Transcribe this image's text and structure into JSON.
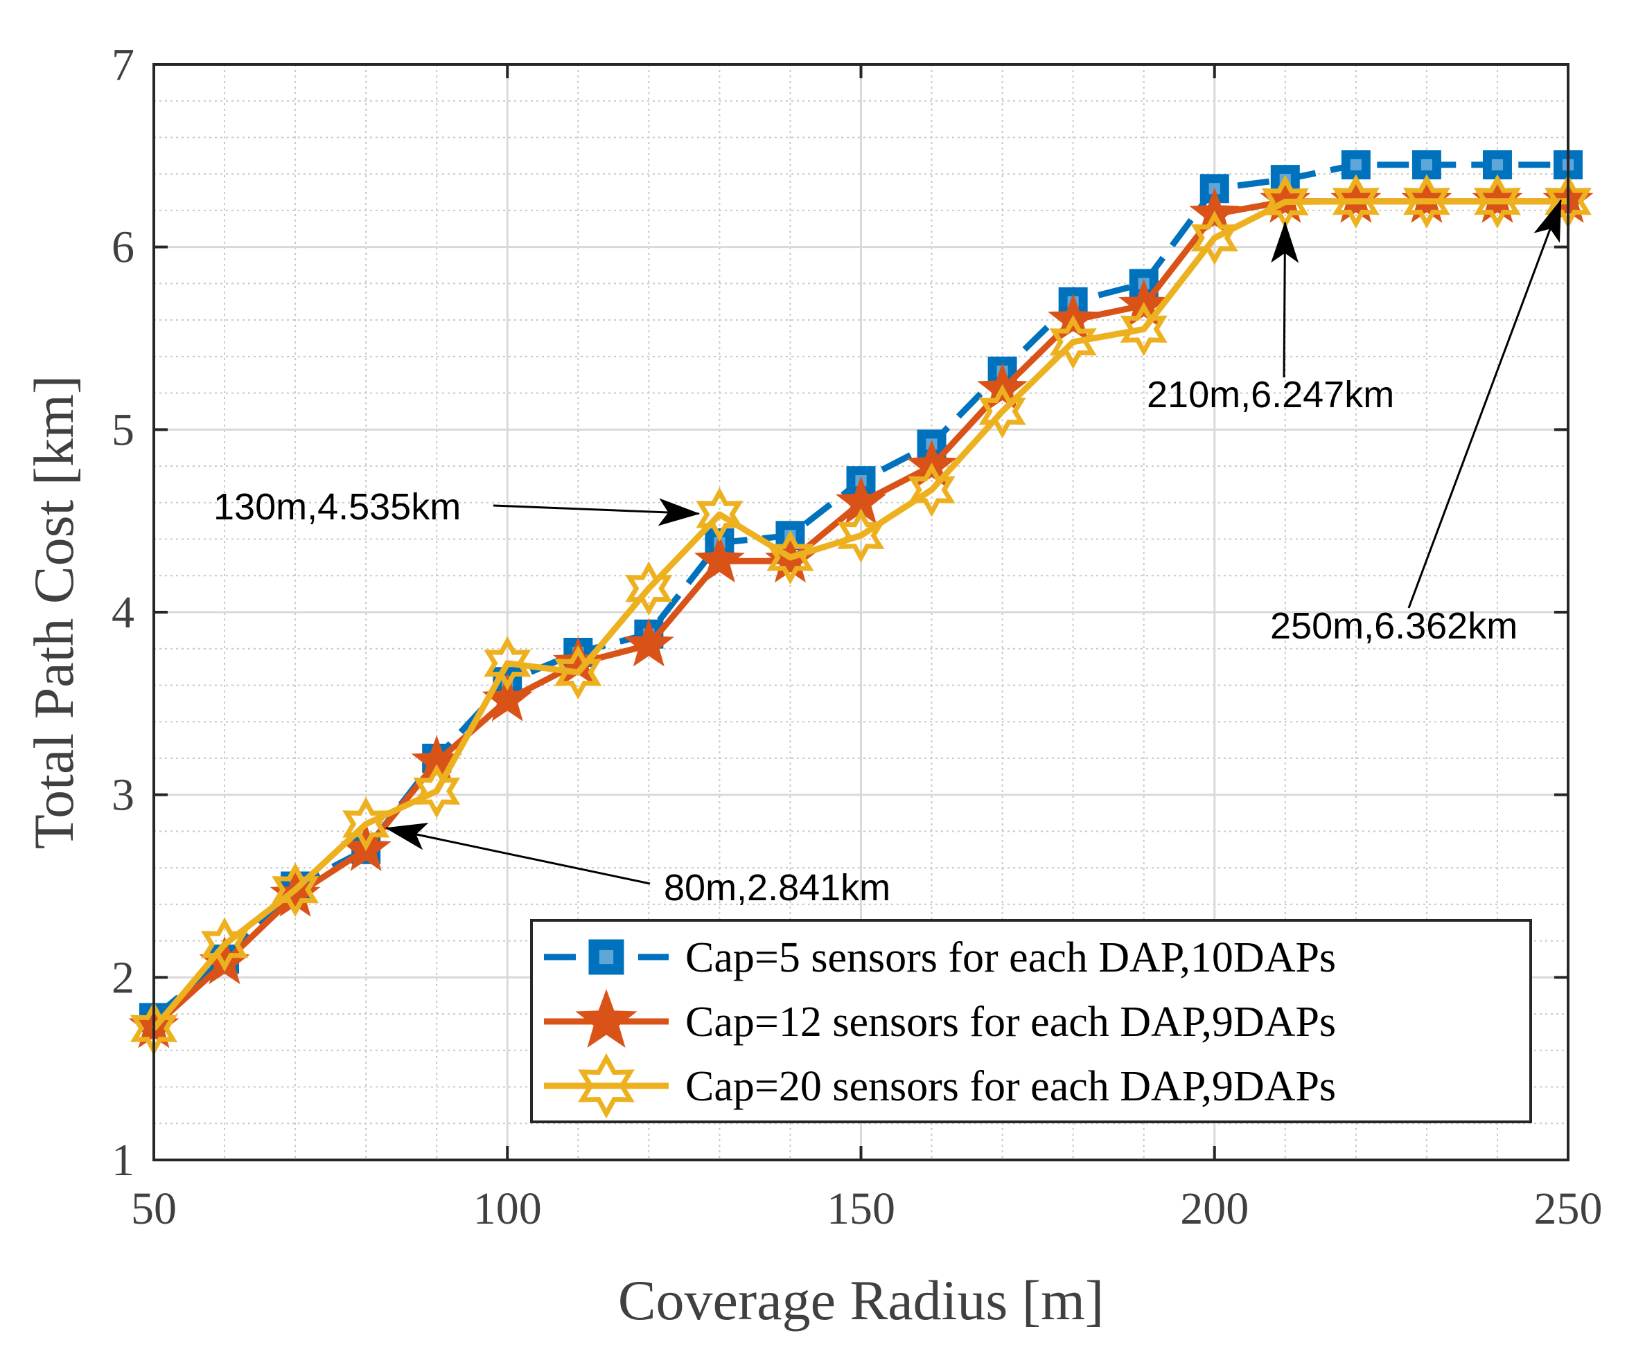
{
  "chart_data": {
    "type": "line",
    "title": "",
    "xlabel": "Coverage Radius [m]",
    "ylabel": "Total Path Cost [km]",
    "xlim": [
      50,
      250
    ],
    "ylim": [
      1,
      7
    ],
    "xticks": [
      50,
      100,
      150,
      200,
      250
    ],
    "yticks": [
      1,
      2,
      3,
      4,
      5,
      6,
      7
    ],
    "grid": true,
    "minor_grid": true,
    "legend_position": "bottom-right",
    "x": [
      50,
      60,
      70,
      80,
      90,
      100,
      110,
      120,
      130,
      140,
      150,
      160,
      170,
      180,
      190,
      200,
      210,
      220,
      230,
      240,
      250
    ],
    "series": [
      {
        "name": "Cap=5 sensors for each DAP,10DAPs",
        "color": "#0072BD",
        "marker": "square",
        "line_style": "dashed",
        "values": [
          1.78,
          2.1,
          2.5,
          2.7,
          3.2,
          3.62,
          3.78,
          3.88,
          4.38,
          4.42,
          4.72,
          4.92,
          5.32,
          5.7,
          5.8,
          6.32,
          6.37,
          6.45,
          6.45,
          6.45,
          6.45
        ]
      },
      {
        "name": "Cap=12 sensors for each DAP,9DAPs",
        "color": "#D95319",
        "marker": "star-filled",
        "line_style": "solid",
        "values": [
          1.73,
          2.08,
          2.45,
          2.7,
          3.18,
          3.52,
          3.72,
          3.82,
          4.28,
          4.28,
          4.6,
          4.8,
          5.22,
          5.6,
          5.68,
          6.18,
          6.25,
          6.25,
          6.25,
          6.25,
          6.25
        ]
      },
      {
        "name": "Cap=20 sensors for each DAP,9DAPs",
        "color": "#EDB120",
        "marker": "star-open",
        "line_style": "solid",
        "values": [
          1.72,
          2.18,
          2.48,
          2.84,
          3.02,
          3.72,
          3.67,
          4.13,
          4.535,
          4.3,
          4.42,
          4.67,
          5.1,
          5.48,
          5.55,
          6.05,
          6.247,
          6.25,
          6.25,
          6.25,
          6.25
        ]
      }
    ],
    "annotations": [
      {
        "text": "130m,4.535km",
        "point": [
          130,
          4.535
        ]
      },
      {
        "text": "210m,6.247km",
        "point": [
          210,
          6.247
        ]
      },
      {
        "text": "250m,6.362km",
        "point": [
          250,
          6.362
        ]
      },
      {
        "text": "80m,2.841km",
        "point": [
          80,
          2.841
        ]
      }
    ]
  }
}
